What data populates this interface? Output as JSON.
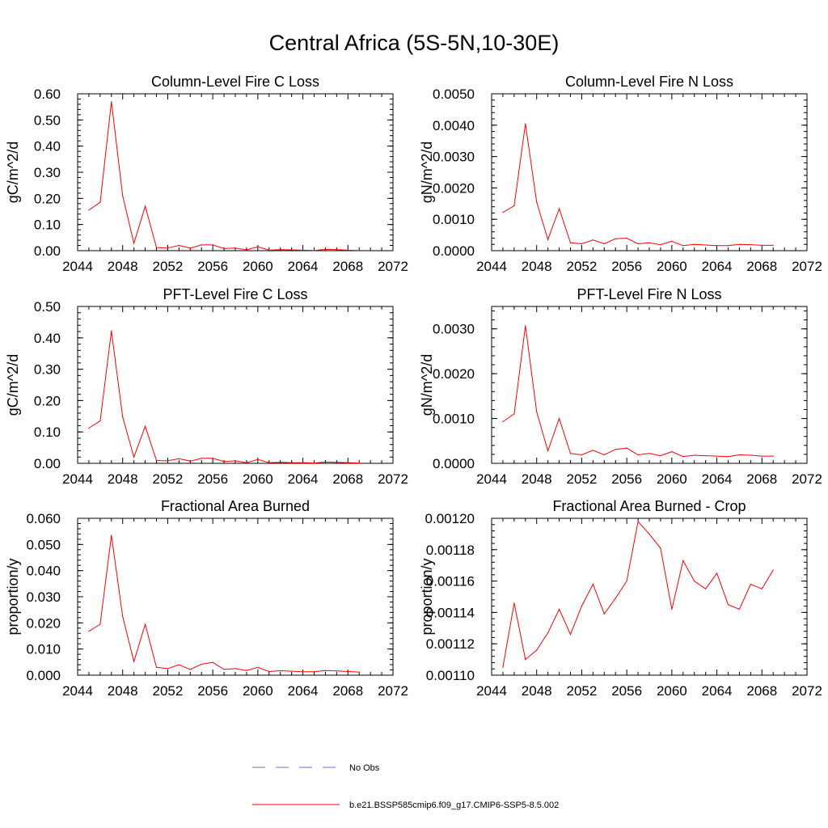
{
  "figure": {
    "title": "Central Africa (5S-5N,10-30E)"
  },
  "legend": [
    {
      "label": "No Obs",
      "color": "#6b6bd6",
      "dashed": true
    },
    {
      "label": "b.e21.BSSP585cmip6.f09_g17.CMIP6-SSP5-8.5.002",
      "color": "#ff0000",
      "dashed": false
    }
  ],
  "chart_data": [
    {
      "type": "line",
      "title": "Column-Level Fire C Loss",
      "ylabel": "gC/m^2/d",
      "xlim": [
        2044,
        2072
      ],
      "ylim": [
        0,
        0.6
      ],
      "xticks": [
        "2044",
        "2048",
        "2052",
        "2056",
        "2060",
        "2064",
        "2068",
        "2072"
      ],
      "yticks": [
        "0.00",
        "0.10",
        "0.20",
        "0.30",
        "0.40",
        "0.50",
        "0.60"
      ],
      "x": [
        2045,
        2046,
        2047,
        2048,
        2049,
        2050,
        2051,
        2052,
        2053,
        2054,
        2055,
        2056,
        2057,
        2058,
        2059,
        2060,
        2061,
        2062,
        2063,
        2064,
        2065,
        2066,
        2067,
        2068,
        2069
      ],
      "series": [
        {
          "name": "b.e21.BSSP585cmip6.f09_g17.CMIP6-SSP5-8.5.002",
          "values": [
            0.155,
            0.185,
            0.57,
            0.21,
            0.028,
            0.17,
            0.012,
            0.01,
            0.02,
            0.01,
            0.022,
            0.022,
            0.008,
            0.01,
            0.003,
            0.015,
            0.002,
            0.004,
            0.003,
            0.002,
            0.001,
            0.005,
            0.004,
            0.002,
            0.001
          ]
        }
      ]
    },
    {
      "type": "line",
      "title": "Column-Level Fire N Loss",
      "ylabel": "gN/m^2/d",
      "xlim": [
        2044,
        2072
      ],
      "ylim": [
        0,
        0.005
      ],
      "xticks": [
        "2044",
        "2048",
        "2052",
        "2056",
        "2060",
        "2064",
        "2068",
        "2072"
      ],
      "yticks": [
        "0.0000",
        "0.0010",
        "0.0020",
        "0.0030",
        "0.0040",
        "0.0050"
      ],
      "x": [
        2045,
        2046,
        2047,
        2048,
        2049,
        2050,
        2051,
        2052,
        2053,
        2054,
        2055,
        2056,
        2057,
        2058,
        2059,
        2060,
        2061,
        2062,
        2063,
        2064,
        2065,
        2066,
        2067,
        2068,
        2069
      ],
      "series": [
        {
          "name": "b.e21.BSSP585cmip6.f09_g17.CMIP6-SSP5-8.5.002",
          "values": [
            0.00122,
            0.00143,
            0.00404,
            0.00155,
            0.00035,
            0.00134,
            0.00025,
            0.00022,
            0.00034,
            0.00022,
            0.00038,
            0.0004,
            0.00022,
            0.00025,
            0.00019,
            0.0003,
            0.00016,
            0.0002,
            0.00018,
            0.00016,
            0.00016,
            0.0002,
            0.00019,
            0.00017,
            0.00017
          ]
        }
      ]
    },
    {
      "type": "line",
      "title": "PFT-Level Fire C Loss",
      "ylabel": "gC/m^2/d",
      "xlim": [
        2044,
        2072
      ],
      "ylim": [
        0,
        0.5
      ],
      "xticks": [
        "2044",
        "2048",
        "2052",
        "2056",
        "2060",
        "2064",
        "2068",
        "2072"
      ],
      "yticks": [
        "0.00",
        "0.10",
        "0.20",
        "0.30",
        "0.40",
        "0.50"
      ],
      "x": [
        2045,
        2046,
        2047,
        2048,
        2049,
        2050,
        2051,
        2052,
        2053,
        2054,
        2055,
        2056,
        2057,
        2058,
        2059,
        2060,
        2061,
        2062,
        2063,
        2064,
        2065,
        2066,
        2067,
        2068,
        2069
      ],
      "series": [
        {
          "name": "b.e21.BSSP585cmip6.f09_g17.CMIP6-SSP5-8.5.002",
          "values": [
            0.112,
            0.135,
            0.422,
            0.148,
            0.02,
            0.118,
            0.009,
            0.008,
            0.015,
            0.007,
            0.016,
            0.016,
            0.006,
            0.008,
            0.002,
            0.012,
            0.002,
            0.003,
            0.002,
            0.002,
            0.001,
            0.004,
            0.003,
            0.002,
            0.001
          ]
        }
      ]
    },
    {
      "type": "line",
      "title": "PFT-Level Fire N Loss",
      "ylabel": "gN/m^2/d",
      "xlim": [
        2044,
        2072
      ],
      "ylim": [
        0,
        0.0035
      ],
      "xticks": [
        "2044",
        "2048",
        "2052",
        "2056",
        "2060",
        "2064",
        "2068",
        "2072"
      ],
      "yticks": [
        "0.0000",
        "0.0010",
        "0.0020",
        "0.0030"
      ],
      "x": [
        2045,
        2046,
        2047,
        2048,
        2049,
        2050,
        2051,
        2052,
        2053,
        2054,
        2055,
        2056,
        2057,
        2058,
        2059,
        2060,
        2061,
        2062,
        2063,
        2064,
        2065,
        2066,
        2067,
        2068,
        2069
      ],
      "series": [
        {
          "name": "b.e21.BSSP585cmip6.f09_g17.CMIP6-SSP5-8.5.002",
          "values": [
            0.00093,
            0.0011,
            0.00307,
            0.00115,
            0.00028,
            0.001,
            0.00022,
            0.00019,
            0.00029,
            0.00019,
            0.00031,
            0.00034,
            0.00019,
            0.00022,
            0.00017,
            0.00026,
            0.00015,
            0.00018,
            0.00017,
            0.00016,
            0.00015,
            0.00019,
            0.00018,
            0.00016,
            0.00016
          ]
        }
      ]
    },
    {
      "type": "line",
      "title": "Fractional Area Burned",
      "ylabel": "proportion/y",
      "xlim": [
        2044,
        2072
      ],
      "ylim": [
        0,
        0.06
      ],
      "xticks": [
        "2044",
        "2048",
        "2052",
        "2056",
        "2060",
        "2064",
        "2068",
        "2072"
      ],
      "yticks": [
        "0.000",
        "0.010",
        "0.020",
        "0.030",
        "0.040",
        "0.050",
        "0.060"
      ],
      "x": [
        2045,
        2046,
        2047,
        2048,
        2049,
        2050,
        2051,
        2052,
        2053,
        2054,
        2055,
        2056,
        2057,
        2058,
        2059,
        2060,
        2061,
        2062,
        2063,
        2064,
        2065,
        2066,
        2067,
        2068,
        2069
      ],
      "series": [
        {
          "name": "b.e21.BSSP585cmip6.f09_g17.CMIP6-SSP5-8.5.002",
          "values": [
            0.0168,
            0.0195,
            0.0535,
            0.0225,
            0.0052,
            0.0195,
            0.003,
            0.0025,
            0.004,
            0.0022,
            0.0042,
            0.0049,
            0.0022,
            0.0025,
            0.0018,
            0.003,
            0.0014,
            0.0017,
            0.0015,
            0.0013,
            0.0013,
            0.0018,
            0.0016,
            0.0014,
            0.0012
          ]
        }
      ]
    },
    {
      "type": "line",
      "title": "Fractional Area Burned - Crop",
      "ylabel": "proportion/y",
      "xlim": [
        2044,
        2072
      ],
      "ylim": [
        0.0011,
        0.0012
      ],
      "xticks": [
        "2044",
        "2048",
        "2052",
        "2056",
        "2060",
        "2064",
        "2068",
        "2072"
      ],
      "yticks": [
        "0.00110",
        "0.00112",
        "0.00114",
        "0.00116",
        "0.00118",
        "0.00120"
      ],
      "x": [
        2045,
        2046,
        2047,
        2048,
        2049,
        2050,
        2051,
        2052,
        2053,
        2054,
        2055,
        2056,
        2057,
        2058,
        2059,
        2060,
        2061,
        2062,
        2063,
        2064,
        2065,
        2066,
        2067,
        2068,
        2069
      ],
      "series": [
        {
          "name": "b.e21.BSSP585cmip6.f09_g17.CMIP6-SSP5-8.5.002",
          "values": [
            0.001105,
            0.001146,
            0.00111,
            0.001116,
            0.001127,
            0.001142,
            0.001126,
            0.001144,
            0.001158,
            0.001139,
            0.001149,
            0.00116,
            0.001198,
            0.00119,
            0.001181,
            0.001142,
            0.001173,
            0.00116,
            0.001155,
            0.001165,
            0.001145,
            0.001142,
            0.001158,
            0.001155,
            0.001167
          ]
        }
      ]
    }
  ]
}
